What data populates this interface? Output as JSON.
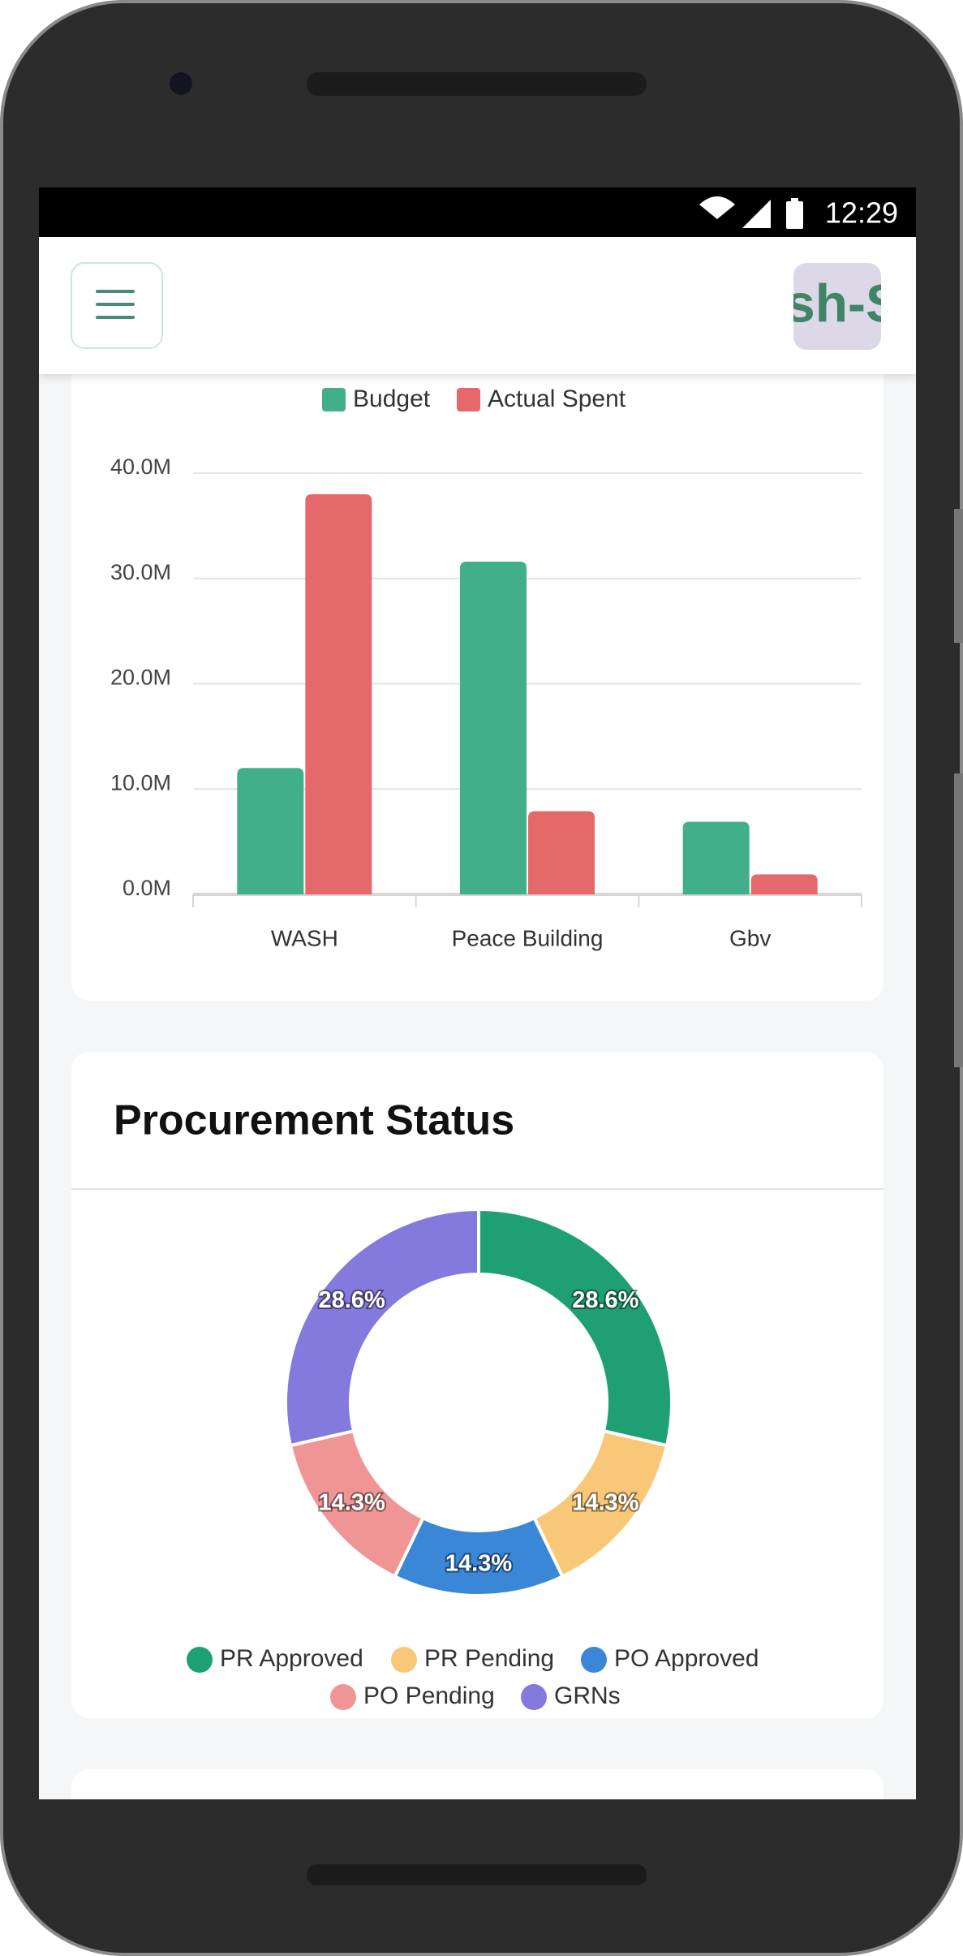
{
  "status_bar": {
    "time": "12:29"
  },
  "header": {
    "logo": "sh-S"
  },
  "chart_data": [
    {
      "type": "bar",
      "categories": [
        "WASH",
        "Peace Building",
        "Gbv"
      ],
      "series": [
        {
          "name": "Budget",
          "color": "#41b08a",
          "values": [
            12000000,
            31600000,
            6900000
          ]
        },
        {
          "name": "Actual Spent",
          "color": "#e5686a",
          "values": [
            38000000,
            7900000,
            1900000
          ]
        }
      ],
      "ylim": [
        0,
        40000000
      ],
      "yticks": [
        {
          "value": 0,
          "label": "0.0M"
        },
        {
          "value": 10000000,
          "label": "10.0M"
        },
        {
          "value": 20000000,
          "label": "20.0M"
        },
        {
          "value": 30000000,
          "label": "30.0M"
        },
        {
          "value": 40000000,
          "label": "40.0M"
        }
      ],
      "grid": true
    },
    {
      "type": "pie",
      "title": "Procurement Status",
      "categories": [
        "PR Approved",
        "PR Pending",
        "PO Approved",
        "PO Pending",
        "GRNs"
      ],
      "values": [
        28.6,
        14.3,
        14.3,
        14.3,
        28.6
      ],
      "value_labels": [
        "28.6%",
        "14.3%",
        "14.3%",
        "14.3%",
        "28.6%"
      ],
      "colors": [
        "#1fa074",
        "#f8c878",
        "#3a87d8",
        "#f09595",
        "#8479dd"
      ]
    }
  ]
}
